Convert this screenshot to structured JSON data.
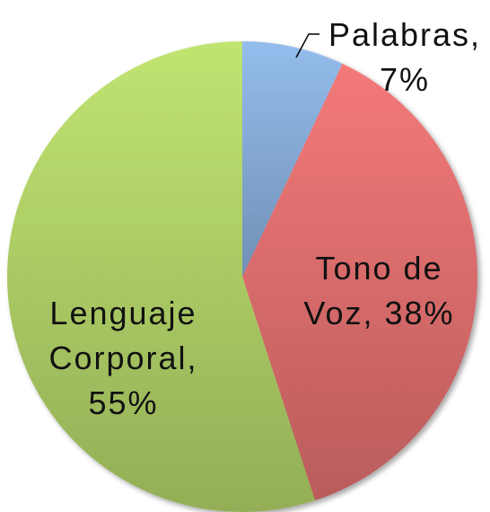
{
  "chart_data": {
    "type": "pie",
    "categories": [
      "Palabras",
      "Tono de Voz",
      "Lenguaje Corporal"
    ],
    "values": [
      7,
      38,
      55
    ],
    "value_labels": [
      "7%",
      "38%",
      "55%"
    ],
    "label_separator": ",",
    "colors": [
      "#8db4e2",
      "#e87373",
      "#b8d96c"
    ]
  }
}
